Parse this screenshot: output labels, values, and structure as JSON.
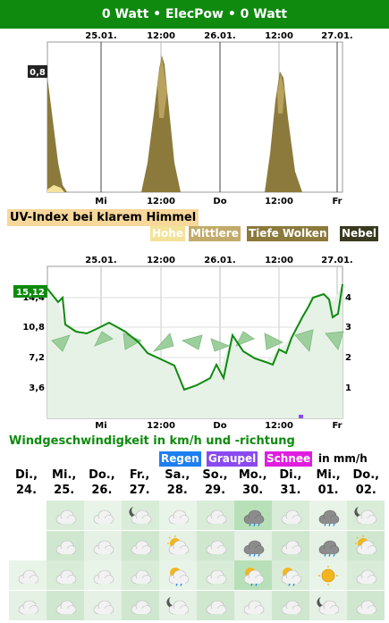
{
  "header": {
    "title": "0 Watt • ElecPow • 0 Watt"
  },
  "cloud_chart": {
    "top_dates": [
      "25.01.",
      "12:00",
      "26.01.",
      "12:00",
      "27.01."
    ],
    "bottom_labels": [
      "Mi",
      "12:00",
      "Do",
      "12:00",
      "Fr"
    ],
    "value_badge": "0,8",
    "colors": {
      "hohe": "#c9b676",
      "mittlere": "#c2aa6a",
      "tiefe": "#8c7a3c",
      "nebel": "#3a3a20"
    }
  },
  "uv": {
    "title": "UV-Index bei klarem Himmel",
    "legend": [
      "Hohe",
      "Mittlere",
      "Tiefe Wolken",
      "Nebel"
    ]
  },
  "wind_chart": {
    "top_dates": [
      "25.01.",
      "12:00",
      "26.01.",
      "12:00",
      "27.01."
    ],
    "bottom_labels": [
      "Mi",
      "12:00",
      "Do",
      "12:00",
      "Fr"
    ],
    "left_ticks": [
      "14,4",
      "10,8",
      "7,2",
      "3,6"
    ],
    "right_ticks": [
      "4",
      "3",
      "2",
      "1"
    ],
    "value_badge": "15,12",
    "line_color": "#0f8a0f"
  },
  "wind": {
    "title": "Windgeschwindigkeit in km/h und -richtung",
    "legend": [
      "Regen",
      "Graupel",
      "Schnee"
    ],
    "unit": "in mm/h"
  },
  "days": [
    {
      "name": "Di.,",
      "date": "24."
    },
    {
      "name": "Mi.,",
      "date": "25."
    },
    {
      "name": "Do.,",
      "date": "26."
    },
    {
      "name": "Fr.,",
      "date": "27."
    },
    {
      "name": "Sa.,",
      "date": "28."
    },
    {
      "name": "So.,",
      "date": "29."
    },
    {
      "name": "Mo.,",
      "date": "30."
    },
    {
      "name": "Di.,",
      "date": "31."
    },
    {
      "name": "Mi.,",
      "date": "01."
    },
    {
      "name": "Do.,",
      "date": "02."
    }
  ],
  "forecast_grid": [
    [
      "none",
      "cloud",
      "cloud",
      "moon-cloud",
      "cloud",
      "cloud",
      "rain-cloud",
      "cloud",
      "rain-cloud",
      "moon-cloud"
    ],
    [
      "none",
      "cloud",
      "cloud",
      "cloud",
      "sun-cloud",
      "cloud",
      "rain-cloud",
      "cloud",
      "rain-cloud",
      "sun-cloud"
    ],
    [
      "cloud",
      "cloud",
      "cloud",
      "cloud",
      "sun-rain-cloud",
      "cloud",
      "sun-rain-cloud",
      "sun-rain-cloud",
      "sun",
      "cloud"
    ],
    [
      "cloud",
      "cloud",
      "cloud",
      "cloud",
      "moon-cloud",
      "cloud",
      "cloud",
      "cloud",
      "moon-cloud",
      "cloud"
    ]
  ]
}
